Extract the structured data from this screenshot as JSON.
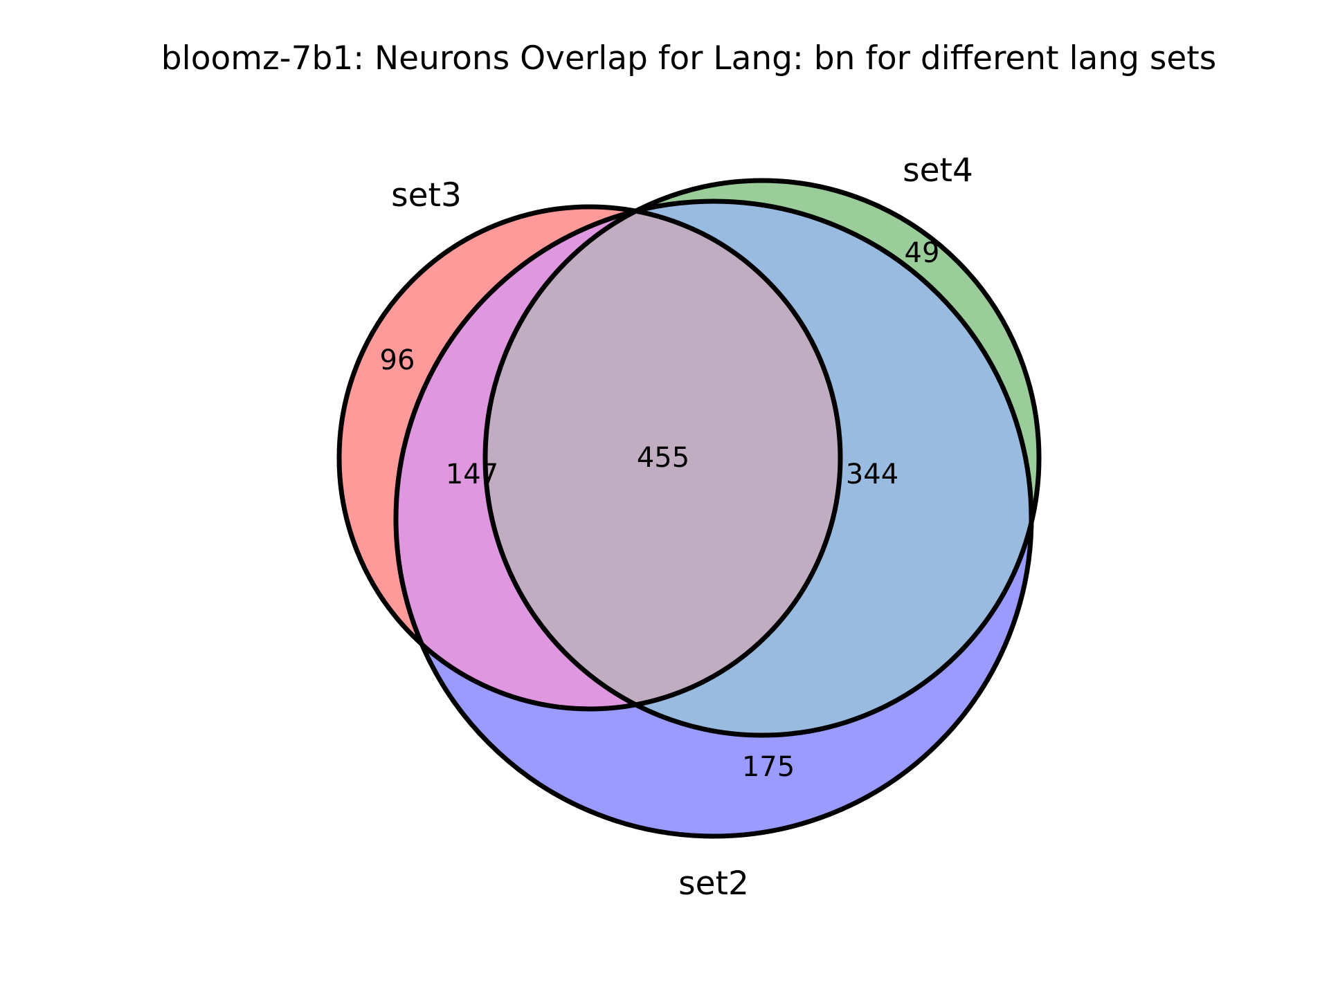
{
  "title": "bloomz-7b1: Neurons Overlap for Lang: bn for different lang sets",
  "sets": [
    {
      "key": "set3",
      "label": "set3",
      "color": "#ff9a9b"
    },
    {
      "key": "set4",
      "label": "set4",
      "color": "#9acd9a"
    },
    {
      "key": "set2",
      "label": "set2",
      "color": "#9a9aff"
    }
  ],
  "regions": {
    "set3_only": "96",
    "set4_only": "49",
    "set2_only": "175",
    "set3_set2": "147",
    "set4_set2": "344",
    "set3_set4_set2": "455"
  },
  "region_colors": {
    "set3_set2": "#df97e0",
    "set4_set2": "#9abbe0",
    "set3_set4": "#c1adc2",
    "all": "#c1adc2"
  }
}
